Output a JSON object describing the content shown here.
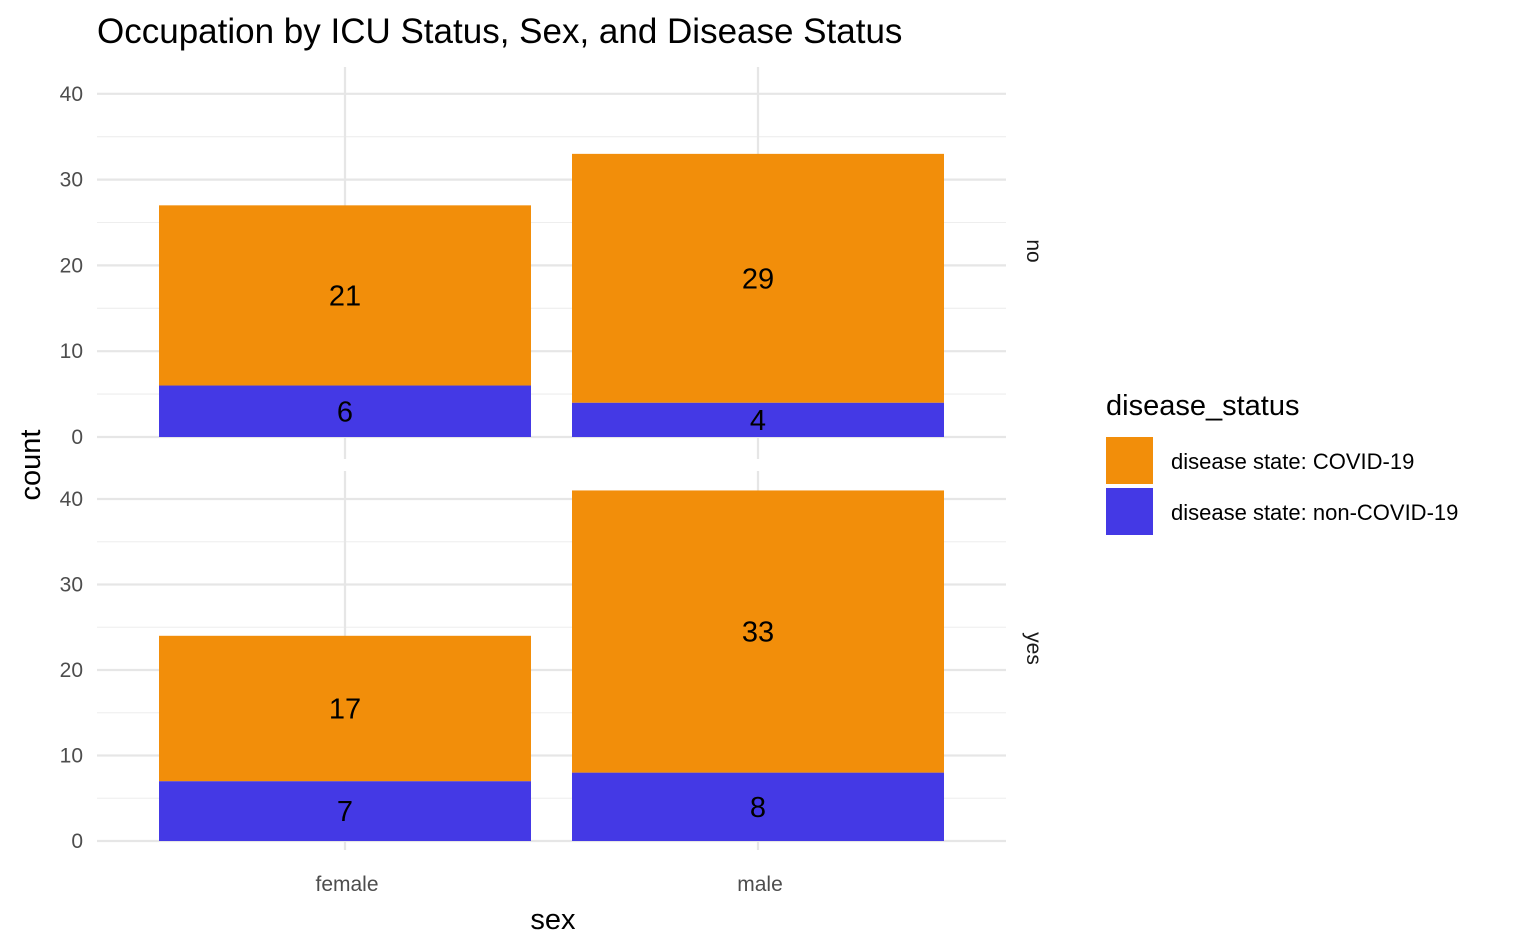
{
  "chart_data": {
    "type": "bar",
    "stacked": true,
    "title": "Occupation by ICU Status, Sex, and Disease Status",
    "xlabel": "sex",
    "ylabel": "count",
    "categories": [
      "female",
      "male"
    ],
    "facet_variable": "icu_status",
    "facets": [
      {
        "label": "no",
        "series": [
          {
            "name": "disease state: COVID-19",
            "values": [
              21,
              29
            ]
          },
          {
            "name": "disease state: non-COVID-19",
            "values": [
              6,
              4
            ]
          }
        ]
      },
      {
        "label": "yes",
        "series": [
          {
            "name": "disease state: COVID-19",
            "values": [
              17,
              33
            ]
          },
          {
            "name": "disease state: non-COVID-19",
            "values": [
              7,
              8
            ]
          }
        ]
      }
    ],
    "stack_order_bottom_to_top": [
      "disease state: non-COVID-19",
      "disease state: COVID-19"
    ],
    "ylim": [
      0,
      43
    ],
    "yticks": [
      0,
      10,
      20,
      30,
      40
    ],
    "grid": true,
    "legend": {
      "title": "disease_status",
      "position": "right",
      "entries": [
        "disease state: COVID-19",
        "disease state: non-COVID-19"
      ]
    },
    "colors": {
      "disease state: COVID-19": "#F28E0A",
      "disease state: non-COVID-19": "#4439E5"
    }
  }
}
